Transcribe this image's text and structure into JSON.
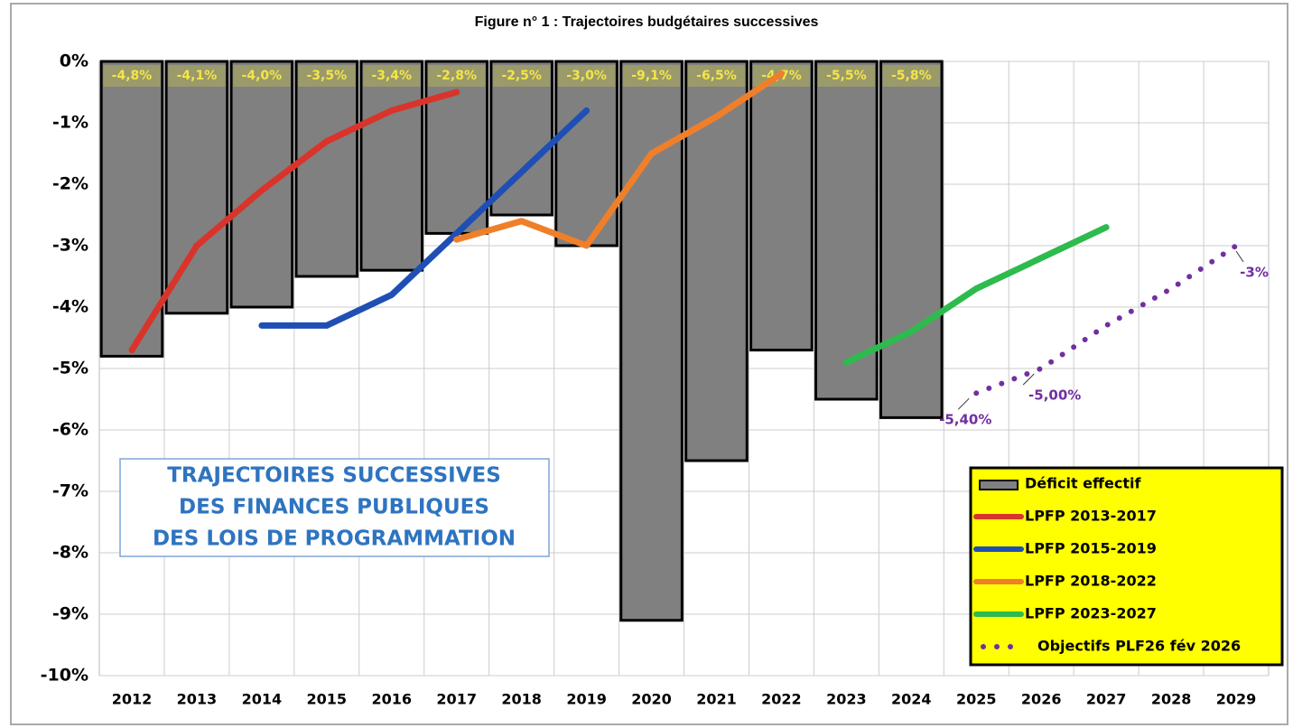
{
  "chart_data": {
    "type": "bar",
    "title": "Figure n° 1 : Trajectoires budgétaires successives",
    "annotation": [
      "TRAJECTOIRES SUCCESSIVES",
      "DES FINANCES PUBLIQUES",
      "DES LOIS DE PROGRAMMATION"
    ],
    "categories": [
      "2012",
      "2013",
      "2014",
      "2015",
      "2016",
      "2017",
      "2018",
      "2019",
      "2020",
      "2021",
      "2022",
      "2023",
      "2024",
      "2025",
      "2026",
      "2027",
      "2028",
      "2029"
    ],
    "ylim": [
      -10,
      0
    ],
    "yticks": [
      {
        "value": 0,
        "label": "0%"
      },
      {
        "value": -1,
        "label": "-1%"
      },
      {
        "value": -2,
        "label": "-2%"
      },
      {
        "value": -3,
        "label": "-3%"
      },
      {
        "value": -4,
        "label": "-4%"
      },
      {
        "value": -5,
        "label": "-5%"
      },
      {
        "value": -6,
        "label": "-6%"
      },
      {
        "value": -7,
        "label": "-7%"
      },
      {
        "value": -8,
        "label": "-8%"
      },
      {
        "value": -9,
        "label": "-9%"
      },
      {
        "value": -10,
        "label": "-10%"
      }
    ],
    "grid": true,
    "legend": "lower right",
    "series": [
      {
        "name": "Déficit effectif",
        "type": "bar",
        "color": "#808080",
        "values": [
          -4.8,
          -4.1,
          -4.0,
          -3.5,
          -3.4,
          -2.8,
          -2.5,
          -3.0,
          -9.1,
          -6.5,
          -4.7,
          -5.5,
          -5.8,
          null,
          null,
          null,
          null,
          null
        ],
        "value_labels": [
          "-4,8%",
          "-4,1%",
          "-4,0%",
          "-3,5%",
          "-3,4%",
          "-2,8%",
          "-2,5%",
          "-3,0%",
          "-9,1%",
          "-6,5%",
          "-4,7%",
          "-5,5%",
          "-5,8%",
          null,
          null,
          null,
          null,
          null
        ]
      },
      {
        "name": "LPFP 2013-2017",
        "type": "line",
        "color": "#d9342b",
        "values": [
          -4.7,
          -3.0,
          -2.1,
          -1.3,
          -0.8,
          -0.5,
          null,
          null,
          null,
          null,
          null,
          null,
          null,
          null,
          null,
          null,
          null,
          null
        ]
      },
      {
        "name": "LPFP 2015-2019",
        "type": "line",
        "color": "#1f4fb4",
        "values": [
          null,
          null,
          -4.3,
          -4.3,
          -3.8,
          -2.8,
          -1.8,
          -0.8,
          null,
          null,
          null,
          null,
          null,
          null,
          null,
          null,
          null,
          null
        ]
      },
      {
        "name": "LPFP 2018-2022",
        "type": "line",
        "color": "#f07f2a",
        "values": [
          null,
          null,
          null,
          null,
          null,
          -2.9,
          -2.6,
          -3.0,
          -1.5,
          -0.9,
          -0.2,
          null,
          null,
          null,
          null,
          null,
          null,
          null
        ]
      },
      {
        "name": "LPFP  2023-2027",
        "type": "line",
        "color": "#2dbb4e",
        "values": [
          null,
          null,
          null,
          null,
          null,
          null,
          null,
          null,
          null,
          null,
          null,
          -4.9,
          -4.4,
          -3.7,
          -3.2,
          -2.7,
          null,
          null
        ]
      },
      {
        "name": "Objectifs PLF26 fév 2026",
        "type": "line",
        "style": "dotted",
        "color": "#7030a0",
        "values": [
          null,
          null,
          null,
          null,
          null,
          null,
          null,
          null,
          null,
          null,
          null,
          null,
          null,
          -5.4,
          -5.0,
          -4.3,
          -3.7,
          -3.0
        ],
        "value_labels": [
          null,
          null,
          null,
          null,
          null,
          null,
          null,
          null,
          null,
          null,
          null,
          null,
          null,
          "-5,40%",
          "-5,00%",
          null,
          null,
          "-3%"
        ]
      }
    ]
  }
}
